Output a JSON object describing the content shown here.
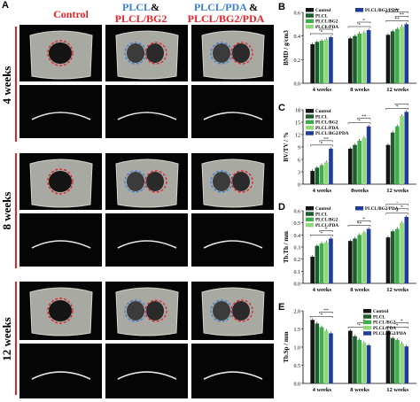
{
  "panel_a": {
    "letter": "A",
    "col_headers": [
      {
        "parts": [
          {
            "text": "Control",
            "color": "red"
          }
        ]
      },
      {
        "parts": [
          {
            "text": "PLCL",
            "color": "blue"
          },
          {
            "text": "&",
            "color": "black"
          },
          {
            "text": "PLCL/BG2",
            "color": "red"
          }
        ]
      },
      {
        "parts": [
          {
            "text": "PLCL/PDA",
            "color": "blue"
          },
          {
            "text": " &",
            "color": "black"
          },
          {
            "text": "PLCL/BG2/PDA",
            "color": "red"
          }
        ]
      }
    ],
    "row_labels": [
      "4 weeks",
      "8 weeks",
      "12 weeks"
    ],
    "colors": {
      "red_circle": "#e3242b",
      "blue_circle": "#3a7fd5"
    }
  },
  "chart_data": [
    {
      "panel": "B",
      "type": "bar",
      "ylabel": "BMD / g/cm3",
      "ylim": [
        0,
        0.6
      ],
      "yticks": [
        "0.0",
        "0.2",
        "0.4",
        "0.6"
      ],
      "categories": [
        "4 weeks",
        "8 weeks",
        "12 weeks"
      ],
      "series": [
        {
          "name": "Control",
          "values": [
            0.33,
            0.38,
            0.41
          ]
        },
        {
          "name": "PLCL",
          "values": [
            0.35,
            0.4,
            0.44
          ]
        },
        {
          "name": "PLCL/BG2",
          "values": [
            0.36,
            0.42,
            0.46
          ]
        },
        {
          "name": "PLCL/PDA",
          "values": [
            0.37,
            0.43,
            0.48
          ]
        },
        {
          "name": "PLCL/BG2/PDA",
          "values": [
            0.39,
            0.45,
            0.5
          ]
        }
      ],
      "legend": [
        "Control",
        "PLCL",
        "PLCL/BG2",
        "PLCL/PDA"
      ],
      "legend2": [
        "PLCL/BG2/PDA"
      ],
      "annotations": [
        "*",
        "*",
        "*",
        "*",
        "**",
        "**",
        "**"
      ]
    },
    {
      "panel": "C",
      "type": "bar",
      "ylabel": "BV/TV / %",
      "ylim": [
        0,
        18
      ],
      "yticks": [
        "0",
        "3",
        "6",
        "9",
        "12",
        "15",
        "18"
      ],
      "categories": [
        "4 weeks",
        "8weeks",
        "12 weeks"
      ],
      "series": [
        {
          "name": "Control",
          "values": [
            3.2,
            8.6,
            9.5
          ]
        },
        {
          "name": "PLCL",
          "values": [
            4.0,
            9.5,
            12.5
          ]
        },
        {
          "name": "PLCL/BG2",
          "values": [
            4.6,
            10.5,
            14.0
          ]
        },
        {
          "name": "PLCL/PDA",
          "values": [
            5.3,
            11.2,
            16.5
          ]
        },
        {
          "name": "PLCL/BG2/PDA",
          "values": [
            8.6,
            14.0,
            17.5
          ]
        }
      ],
      "legend": [
        "Control",
        "PLCL",
        "PLCL/BG2",
        "PLCL/PDA",
        "PLCL/BG2/PDA"
      ],
      "annotations": [
        "*",
        "**",
        "*",
        "**",
        "*",
        "**",
        "*"
      ]
    },
    {
      "panel": "D",
      "type": "bar",
      "ylabel": "Tb.Th / mm",
      "ylim": [
        0,
        0.6
      ],
      "yticks": [
        "0.0",
        "0.1",
        "0.2",
        "0.3",
        "0.4",
        "0.5",
        "0.6"
      ],
      "categories": [
        "4 weeks",
        "8 weeks",
        "12 weeks"
      ],
      "series": [
        {
          "name": "Control",
          "values": [
            0.22,
            0.35,
            0.38
          ]
        },
        {
          "name": "PLCL",
          "values": [
            0.31,
            0.37,
            0.43
          ]
        },
        {
          "name": "PLCL/BG2",
          "values": [
            0.33,
            0.4,
            0.45
          ]
        },
        {
          "name": "PLCL/PDA",
          "values": [
            0.34,
            0.42,
            0.5
          ]
        },
        {
          "name": "PLCL/BG2/PDA",
          "values": [
            0.37,
            0.45,
            0.55
          ]
        }
      ],
      "legend": [
        "Control",
        "PLCL",
        "PLCL/BG2",
        "PLCL/PDA"
      ],
      "legend2": [
        "PLCL/BG2/PDA"
      ],
      "annotations": [
        "*",
        "*",
        "**",
        "*",
        "*",
        "*",
        "*"
      ]
    },
    {
      "panel": "E",
      "type": "bar",
      "ylabel": "Tb.Sp / mm",
      "ylim": [
        0,
        2.0
      ],
      "yticks": [
        "0.0",
        "0.5",
        "1.0",
        "1.5",
        "2.0"
      ],
      "categories": [
        "4 weeks",
        "8 weeks",
        "12 weeks"
      ],
      "series": [
        {
          "name": "Control",
          "values": [
            1.75,
            1.45,
            1.45
          ]
        },
        {
          "name": "PLCL",
          "values": [
            1.65,
            1.3,
            1.25
          ]
        },
        {
          "name": "PLCL/BG2",
          "values": [
            1.55,
            1.2,
            1.2
          ]
        },
        {
          "name": "PLCL/PDA",
          "values": [
            1.45,
            1.12,
            1.1
          ]
        },
        {
          "name": "PLCL/BG2/PDA",
          "values": [
            1.38,
            1.05,
            1.02
          ]
        }
      ],
      "legend": [
        "Control",
        "PLCL",
        "PLCL/BG2",
        "PLCL/PDA",
        "PLCL/BG2/PDA"
      ],
      "annotations": [
        "*",
        "**",
        "*",
        "*",
        "*",
        "*"
      ]
    }
  ],
  "series_colors": [
    "#141414",
    "#1d5e2c",
    "#3fae4a",
    "#8fd97a",
    "#1e3d9a"
  ]
}
